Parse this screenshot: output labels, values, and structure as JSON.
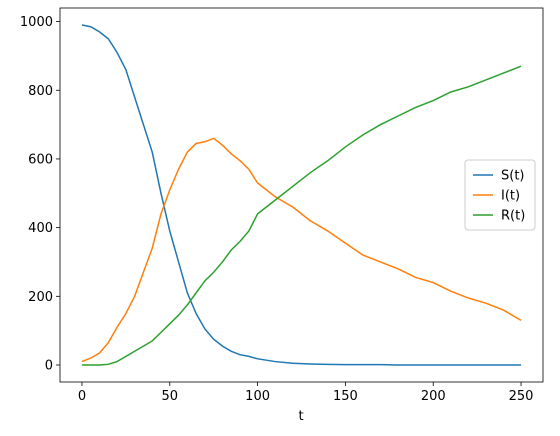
{
  "chart_data": {
    "type": "line",
    "xlabel": "t",
    "x": [
      0,
      5,
      10,
      15,
      20,
      25,
      30,
      35,
      40,
      45,
      50,
      55,
      60,
      65,
      70,
      75,
      80,
      85,
      90,
      95,
      100,
      110,
      120,
      130,
      140,
      150,
      160,
      170,
      180,
      190,
      200,
      210,
      220,
      230,
      240,
      250
    ],
    "series": [
      {
        "name": "S(t)",
        "color": "#1f77b4",
        "values": [
          990,
          985,
          970,
          950,
          910,
          860,
          780,
          700,
          620,
          500,
          390,
          300,
          210,
          150,
          105,
          75,
          55,
          40,
          30,
          25,
          18,
          10,
          5,
          3,
          2,
          1,
          1,
          1,
          0,
          0,
          0,
          0,
          0,
          0,
          0,
          0
        ]
      },
      {
        "name": "I(t)",
        "color": "#ff7f0e",
        "values": [
          10,
          20,
          35,
          65,
          110,
          150,
          200,
          270,
          340,
          440,
          510,
          570,
          620,
          645,
          650,
          660,
          640,
          615,
          595,
          570,
          530,
          490,
          460,
          420,
          390,
          355,
          320,
          300,
          280,
          255,
          240,
          215,
          195,
          180,
          160,
          130
        ]
      },
      {
        "name": "R(t)",
        "color": "#2ca02c",
        "values": [
          0,
          0,
          0,
          2,
          10,
          25,
          40,
          55,
          70,
          95,
          120,
          145,
          175,
          210,
          245,
          270,
          300,
          335,
          360,
          390,
          440,
          480,
          520,
          560,
          595,
          635,
          670,
          700,
          725,
          750,
          770,
          795,
          810,
          830,
          850,
          870
        ]
      }
    ],
    "xlim": [
      -12.5,
      262.5
    ],
    "xticks": [
      0,
      50,
      100,
      150,
      200,
      250
    ],
    "ylim": [
      -49.5,
      1039.5
    ],
    "yticks": [
      0,
      200,
      400,
      600,
      800,
      1000
    ],
    "legend": "center right"
  }
}
